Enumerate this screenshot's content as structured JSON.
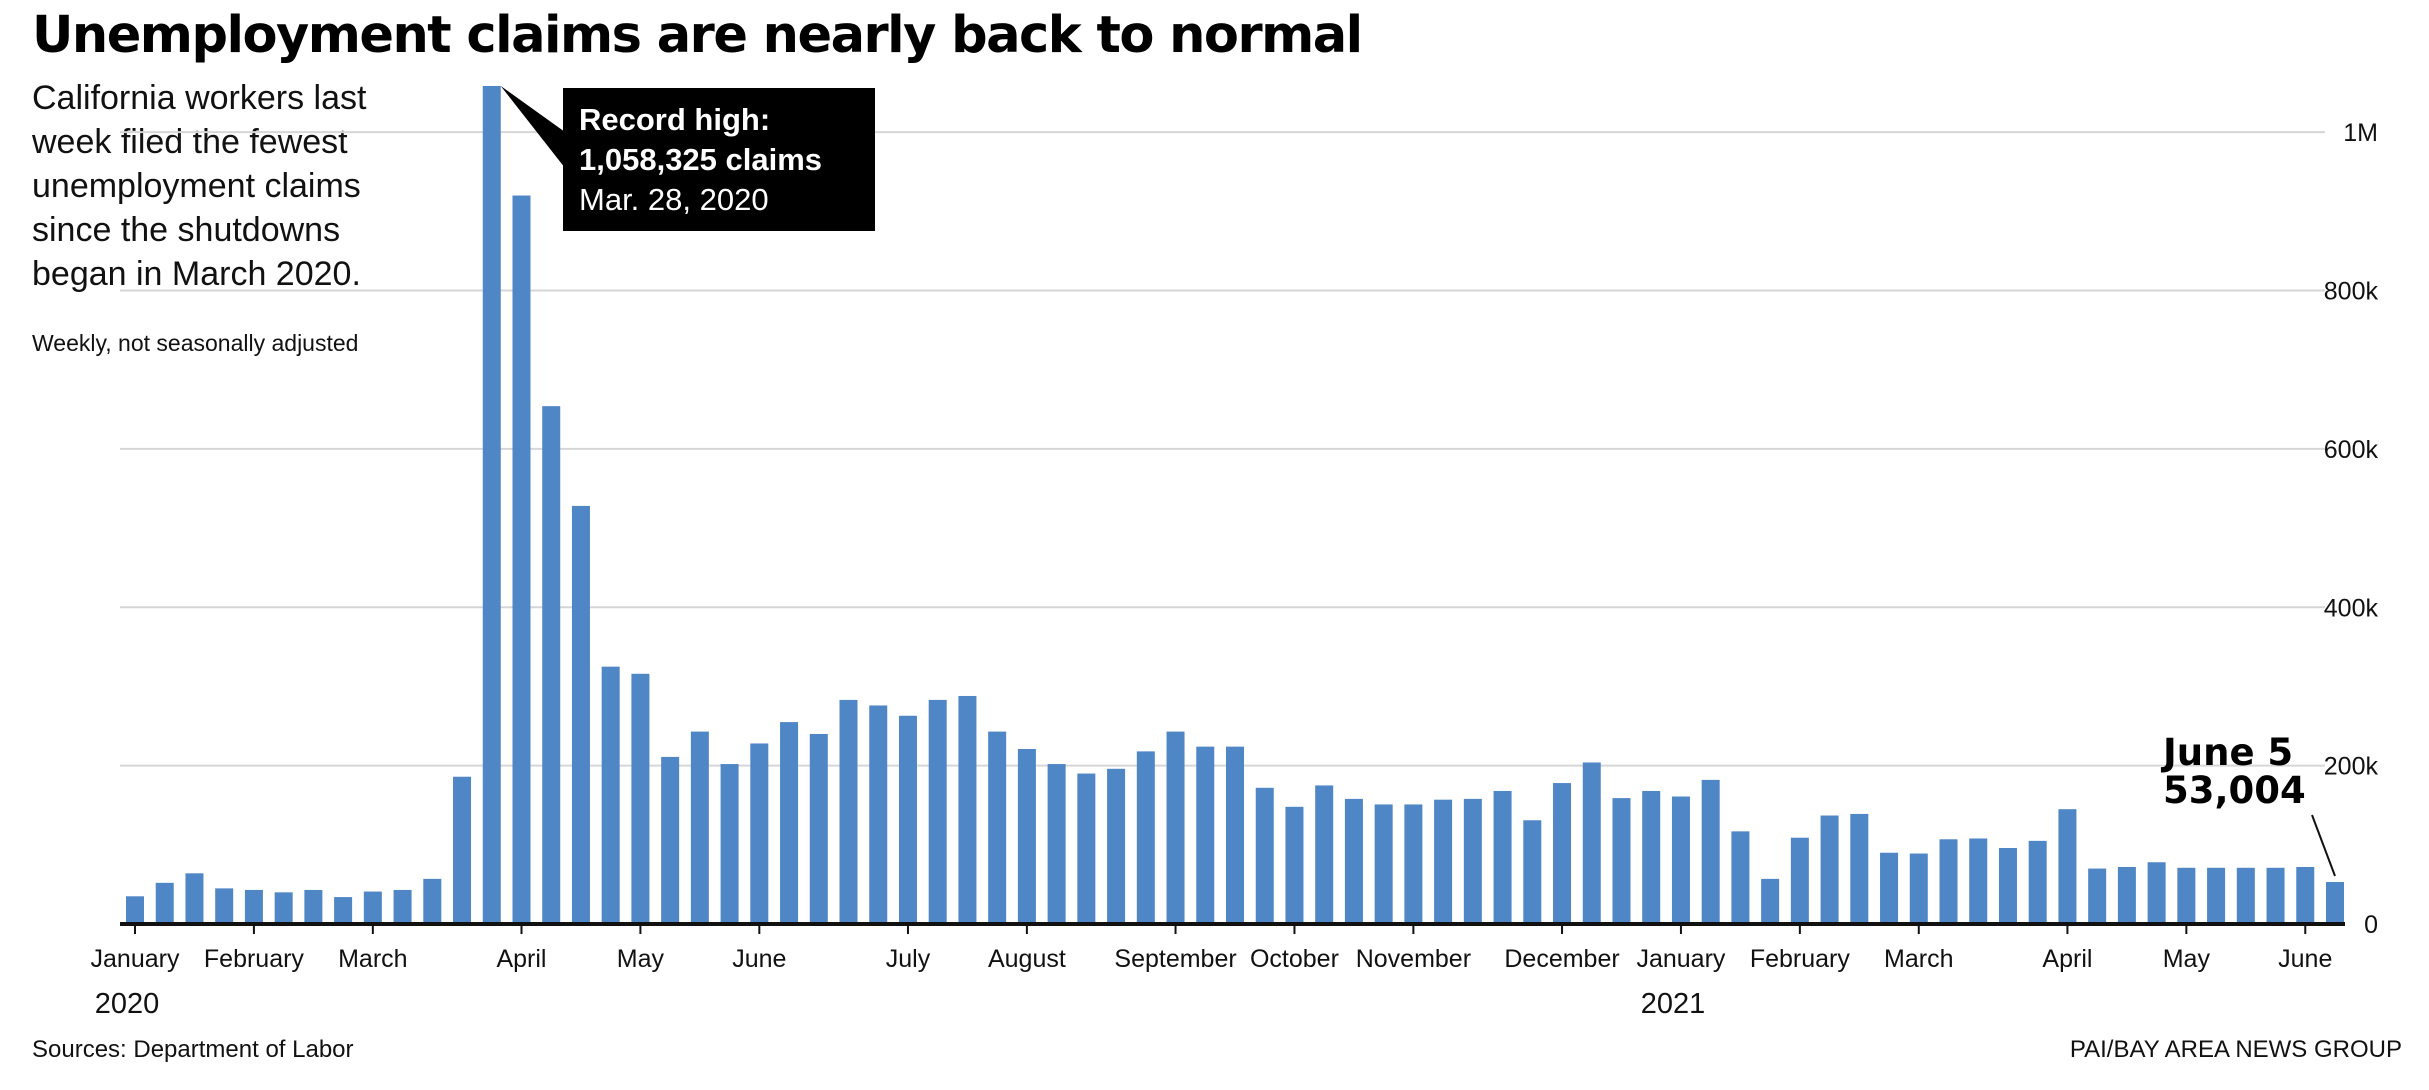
{
  "header": {
    "title": "Unemployment claims are nearly back to normal",
    "subtitle": "California workers last week filed the fewest unemployment claims since the shutdowns began in March 2020.",
    "note": "Weekly, not seasonally adjusted"
  },
  "footer": {
    "source": "Sources: Department of Labor",
    "credit": "PAI/BAY AREA NEWS GROUP"
  },
  "colors": {
    "bar": "#4f86c6",
    "grid": "#d6d6d6",
    "axis": "#111111",
    "callout_bg": "#000000"
  },
  "annotations": {
    "peak": {
      "line1": "Record high:",
      "line2": "1,058,325 claims",
      "line3": "Mar. 28, 2020"
    },
    "last": {
      "line1": "June 5",
      "line2": "53,004"
    }
  },
  "chart_data": {
    "type": "bar",
    "title": "Unemployment claims are nearly back to normal",
    "frequency": "weekly",
    "start_week": "2020-01-04",
    "end_week": "2021-06-05",
    "ylim": [
      0,
      1058325
    ],
    "y_ticks": [
      0,
      200000,
      400000,
      600000,
      800000,
      1000000
    ],
    "y_tick_labels": [
      "0",
      "200k",
      "400k",
      "600k",
      "800k",
      "1M"
    ],
    "y_axis_position": "right",
    "grid": true,
    "legend": "none",
    "x_tick_labels": [
      "January",
      "February",
      "March",
      "April",
      "May",
      "June",
      "July",
      "August",
      "September",
      "October",
      "November",
      "December",
      "January",
      "February",
      "March",
      "April",
      "May",
      "June"
    ],
    "x_tick_weeks": [
      0,
      4,
      8,
      13,
      17,
      21,
      26,
      30,
      35,
      39,
      43,
      48,
      52,
      56,
      60,
      65,
      69,
      73
    ],
    "year_labels": [
      {
        "label": "2020",
        "week": 0
      },
      {
        "label": "2021",
        "week": 52
      }
    ],
    "values": [
      35000,
      52000,
      64000,
      45000,
      43000,
      40000,
      43000,
      34000,
      41000,
      43000,
      57000,
      186000,
      1058325,
      920000,
      654000,
      528000,
      325000,
      316000,
      211000,
      243000,
      202000,
      228000,
      255000,
      240000,
      283000,
      276000,
      263000,
      283000,
      288000,
      243000,
      221000,
      202000,
      190000,
      196000,
      218000,
      243000,
      224000,
      224000,
      172000,
      148000,
      175000,
      158000,
      151000,
      151000,
      157000,
      158000,
      168000,
      131000,
      178000,
      204000,
      159000,
      168000,
      161000,
      182000,
      117000,
      57000,
      109000,
      137000,
      139000,
      90000,
      89000,
      107000,
      108000,
      96000,
      105000,
      145000,
      70000,
      72000,
      78000,
      71000,
      71000,
      71000,
      71000,
      72000,
      53004
    ]
  }
}
